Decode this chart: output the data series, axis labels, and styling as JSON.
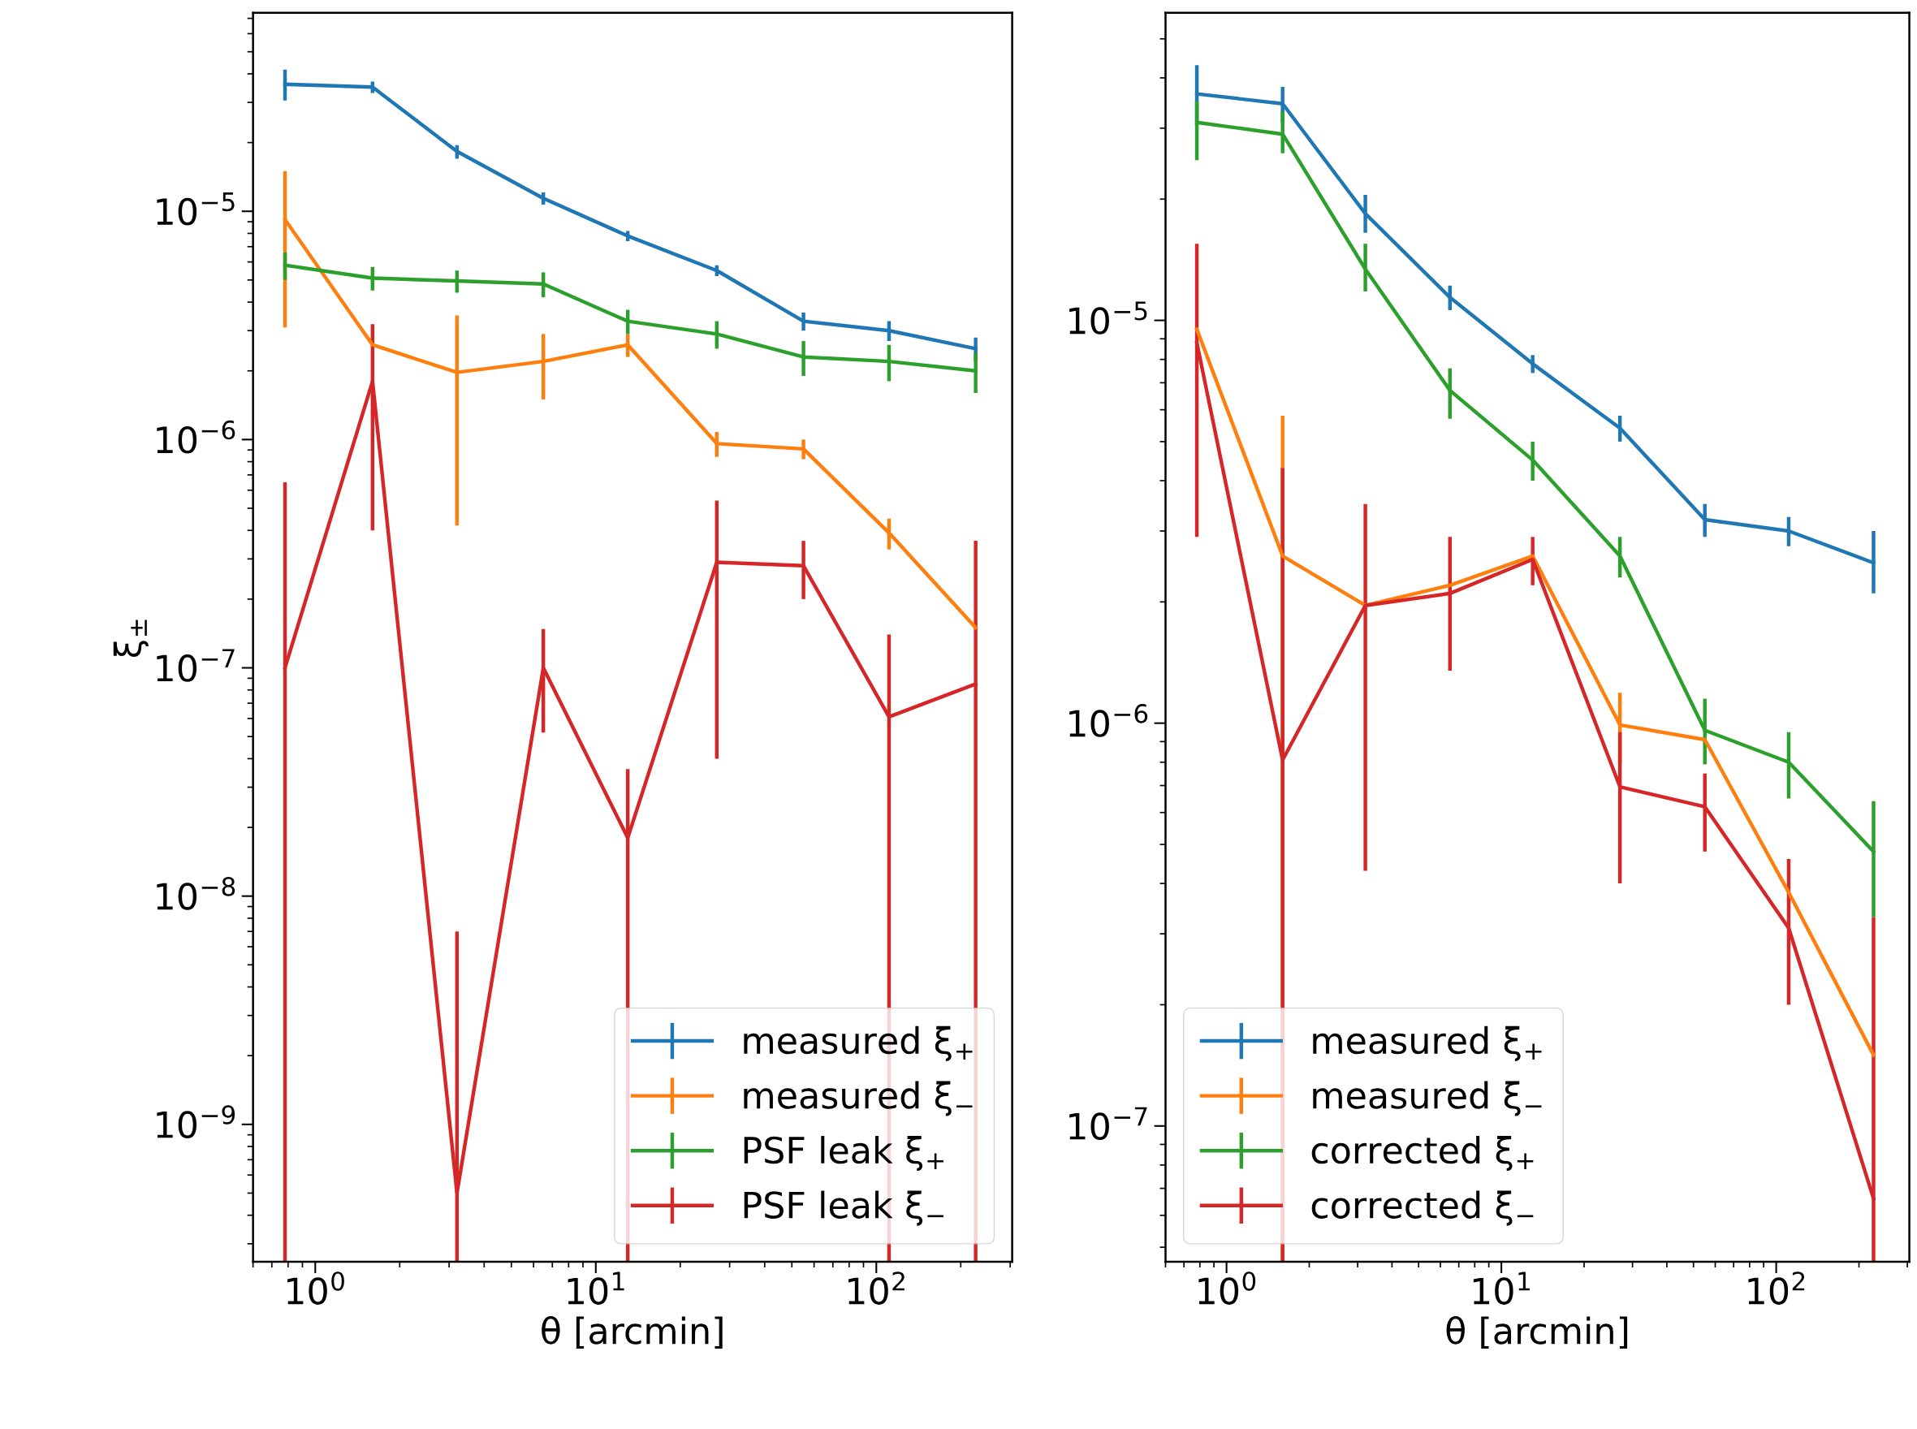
{
  "chart_data": [
    {
      "type": "line",
      "xlabel": "θ [arcmin]",
      "ylabel": "ξ$_{±}$",
      "log": "xy",
      "legend": "bottom right",
      "grid": false,
      "marker": "none",
      "line_style": "solid",
      "x": [
        0.78,
        1.6,
        3.2,
        6.5,
        13,
        27,
        55,
        111,
        226
      ],
      "xlim": [
        0.6,
        305
      ],
      "xticks": [
        {
          "value": 1,
          "label": "10$^{0}$"
        },
        {
          "value": 10,
          "label": "10$^{1}$"
        },
        {
          "value": 100,
          "label": "10$^{2}$"
        }
      ],
      "ylim": [
        2.5e-10,
        7.4e-05
      ],
      "yticks": [
        {
          "value": 1e-09,
          "label": "10$^{−9}$"
        },
        {
          "value": 1e-08,
          "label": "10$^{−8}$"
        },
        {
          "value": 1e-07,
          "label": "10$^{−7}$"
        },
        {
          "value": 1e-06,
          "label": "10$^{−6}$"
        },
        {
          "value": 1e-05,
          "label": "10$^{−5}$"
        }
      ],
      "series": [
        {
          "name": "measured ξ$_{+}$",
          "color": "#1f77b4",
          "values": [
            3.6e-05,
            3.5e-05,
            1.83e-05,
            1.14e-05,
            7.8e-06,
            5.5e-06,
            3.3e-06,
            3e-06,
            2.5e-06
          ],
          "errors": [
            [
              3.06e-05,
              4.17e-05
            ],
            [
              3.3e-05,
              3.7e-05
            ],
            [
              1.7e-05,
              1.95e-05
            ],
            [
              1.07e-05,
              1.21e-05
            ],
            [
              7.4e-06,
              8.2e-06
            ],
            [
              5.2e-06,
              5.8e-06
            ],
            [
              3e-06,
              3.6e-06
            ],
            [
              2.7e-06,
              3.3e-06
            ],
            [
              2.2e-06,
              2.8e-06
            ]
          ]
        },
        {
          "name": "measured ξ$_{−}$",
          "color": "#ff7f0e",
          "values": [
            9.2e-06,
            2.6e-06,
            1.97e-06,
            2.2e-06,
            2.6e-06,
            9.6e-07,
            9.1e-07,
            3.9e-07,
            1.5e-07
          ],
          "errors": [
            [
              3.1e-06,
              1.5e-05
            ],
            null,
            [
              4.2e-07,
              3.5e-06
            ],
            [
              1.5e-06,
              2.9e-06
            ],
            [
              2.3e-06,
              2.9e-06
            ],
            [
              8.4e-07,
              1.08e-06
            ],
            [
              8.2e-07,
              1e-06
            ],
            [
              3.3e-07,
              4.5e-07
            ],
            null
          ]
        },
        {
          "name": "PSF leak ξ$_{+}$",
          "color": "#2ca02c",
          "values": [
            5.8e-06,
            5.1e-06,
            4.95e-06,
            4.8e-06,
            3.3e-06,
            2.9e-06,
            2.3e-06,
            2.2e-06,
            2e-06
          ],
          "errors": [
            [
              5e-06,
              6.6e-06
            ],
            [
              4.5e-06,
              5.7e-06
            ],
            [
              4.4e-06,
              5.5e-06
            ],
            [
              4.2e-06,
              5.4e-06
            ],
            [
              2.9e-06,
              3.7e-06
            ],
            [
              2.5e-06,
              3.3e-06
            ],
            [
              1.9e-06,
              2.7e-06
            ],
            [
              1.8e-06,
              2.6e-06
            ],
            [
              1.6e-06,
              2.4e-06
            ]
          ]
        },
        {
          "name": "PSF leak ξ$_{−}$",
          "color": "#d62728",
          "values": [
            1e-07,
            1.8e-06,
            5e-10,
            1e-07,
            1.8e-08,
            2.9e-07,
            2.8e-07,
            6.1e-08,
            8.5e-08
          ],
          "errors": [
            [
              2.5e-10,
              6.5e-07
            ],
            [
              4e-07,
              3.2e-06
            ],
            [
              2.5e-10,
              7e-09
            ],
            [
              5.2e-08,
              1.48e-07
            ],
            [
              2.5e-10,
              3.6e-08
            ],
            [
              4e-08,
              5.4e-07
            ],
            [
              2e-07,
              3.6e-07
            ],
            [
              2.5e-10,
              1.4e-07
            ],
            [
              2.5e-10,
              3.6e-07
            ]
          ]
        }
      ]
    },
    {
      "type": "line",
      "xlabel": "θ [arcmin]",
      "log": "xy",
      "legend": "bottom left",
      "grid": false,
      "marker": "none",
      "line_style": "solid",
      "x": [
        0.78,
        1.6,
        3.2,
        6.5,
        13,
        27,
        55,
        111,
        226
      ],
      "xlim": [
        0.6,
        305
      ],
      "xticks": [
        {
          "value": 1,
          "label": "10$^{0}$"
        },
        {
          "value": 10,
          "label": "10$^{1}$"
        },
        {
          "value": 100,
          "label": "10$^{2}$"
        }
      ],
      "ylim": [
        4.6e-08,
        5.8e-05
      ],
      "yticks": [
        {
          "value": 1e-07,
          "label": "10$^{−7}$"
        },
        {
          "value": 1e-06,
          "label": "10$^{−6}$"
        },
        {
          "value": 1e-05,
          "label": "10$^{−5}$"
        }
      ],
      "series": [
        {
          "name": "measured ξ$_{+}$",
          "color": "#1f77b4",
          "values": [
            3.65e-05,
            3.45e-05,
            1.84e-05,
            1.14e-05,
            7.8e-06,
            5.4e-06,
            3.2e-06,
            3e-06,
            2.5e-06
          ],
          "errors": [
            [
              3.1e-05,
              4.3e-05
            ],
            [
              3.1e-05,
              3.8e-05
            ],
            [
              1.65e-05,
              2.05e-05
            ],
            [
              1.06e-05,
              1.22e-05
            ],
            [
              7.4e-06,
              8.2e-06
            ],
            [
              5e-06,
              5.8e-06
            ],
            [
              2.9e-06,
              3.5e-06
            ],
            [
              2.75e-06,
              3.25e-06
            ],
            [
              2.1e-06,
              3e-06
            ]
          ]
        },
        {
          "name": "measured ξ$_{−}$",
          "color": "#ff7f0e",
          "values": [
            9.5e-06,
            2.6e-06,
            1.96e-06,
            2.2e-06,
            2.6e-06,
            9.9e-07,
            9.1e-07,
            3.8e-07,
            1.5e-07
          ],
          "errors": [
            null,
            [
              4.6e-08,
              5.8e-06
            ],
            null,
            null,
            null,
            [
              7.9e-07,
              1.19e-06
            ],
            null,
            null,
            null
          ]
        },
        {
          "name": "corrected ξ$_{+}$",
          "color": "#2ca02c",
          "values": [
            3.1e-05,
            2.9e-05,
            1.34e-05,
            6.7e-06,
            4.5e-06,
            2.6e-06,
            9.6e-07,
            8e-07,
            4.8e-07
          ],
          "errors": [
            [
              2.5e-05,
              3.5e-05
            ],
            [
              2.6e-05,
              3.3e-05
            ],
            [
              1.18e-05,
              1.55e-05
            ],
            [
              5.7e-06,
              7.6e-06
            ],
            [
              4e-06,
              5e-06
            ],
            [
              2.3e-06,
              2.9e-06
            ],
            [
              7.9e-07,
              1.15e-06
            ],
            [
              6.5e-07,
              9.5e-07
            ],
            [
              3.3e-07,
              6.4e-07
            ]
          ]
        },
        {
          "name": "corrected ξ$_{−}$",
          "color": "#d62728",
          "values": [
            8.8e-06,
            8.1e-07,
            1.96e-06,
            2.1e-06,
            2.55e-06,
            6.95e-07,
            6.2e-07,
            3.1e-07,
            6.6e-08
          ],
          "errors": [
            [
              2.9e-06,
              1.55e-05
            ],
            [
              4.6e-08,
              4.3e-06
            ],
            [
              4.3e-07,
              3.5e-06
            ],
            [
              1.35e-06,
              2.9e-06
            ],
            [
              2.2e-06,
              2.9e-06
            ],
            [
              4e-07,
              9.5e-07
            ],
            [
              4.8e-07,
              7.5e-07
            ],
            [
              2e-07,
              4.6e-07
            ],
            [
              4.6e-08,
              3.3e-07
            ]
          ]
        }
      ]
    }
  ]
}
